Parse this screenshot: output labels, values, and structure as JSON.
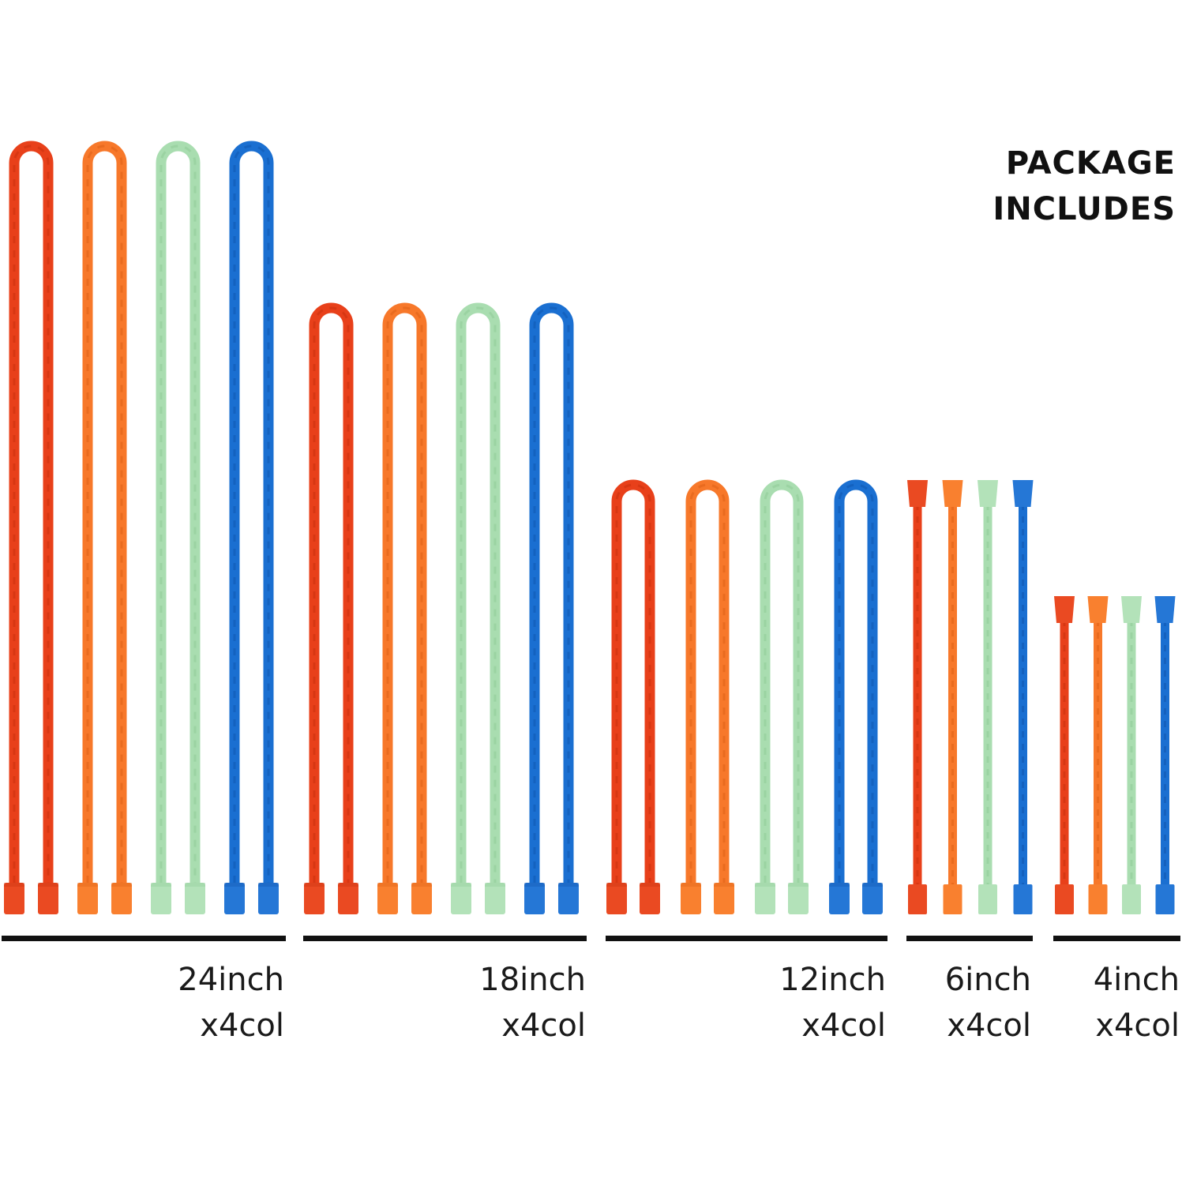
{
  "title": {
    "line1": "PACKAGE",
    "line2": "INCLUDES"
  },
  "colors": {
    "red": "#e8401a",
    "orange": "#f7782a",
    "green": "#a9ddb0",
    "blue": "#1a6fd1",
    "text": "#111111"
  },
  "groups": [
    {
      "id": "24",
      "size_label": "24inch",
      "count_label": "x4col",
      "inches": 24,
      "shape": "loop",
      "colors": [
        "red",
        "orange",
        "green",
        "blue"
      ]
    },
    {
      "id": "18",
      "size_label": "18inch",
      "count_label": "x4col",
      "inches": 18,
      "shape": "loop",
      "colors": [
        "red",
        "orange",
        "green",
        "blue"
      ]
    },
    {
      "id": "12",
      "size_label": "12inch",
      "count_label": "x4col",
      "inches": 12,
      "shape": "loop",
      "colors": [
        "red",
        "orange",
        "green",
        "blue"
      ]
    },
    {
      "id": "6",
      "size_label": "6inch",
      "count_label": "x4col",
      "inches": 6,
      "shape": "straight",
      "colors": [
        "red",
        "orange",
        "green",
        "blue"
      ]
    },
    {
      "id": "4",
      "size_label": "4inch",
      "count_label": "x4col",
      "inches": 4,
      "shape": "straight",
      "colors": [
        "red",
        "orange",
        "green",
        "blue"
      ]
    }
  ]
}
